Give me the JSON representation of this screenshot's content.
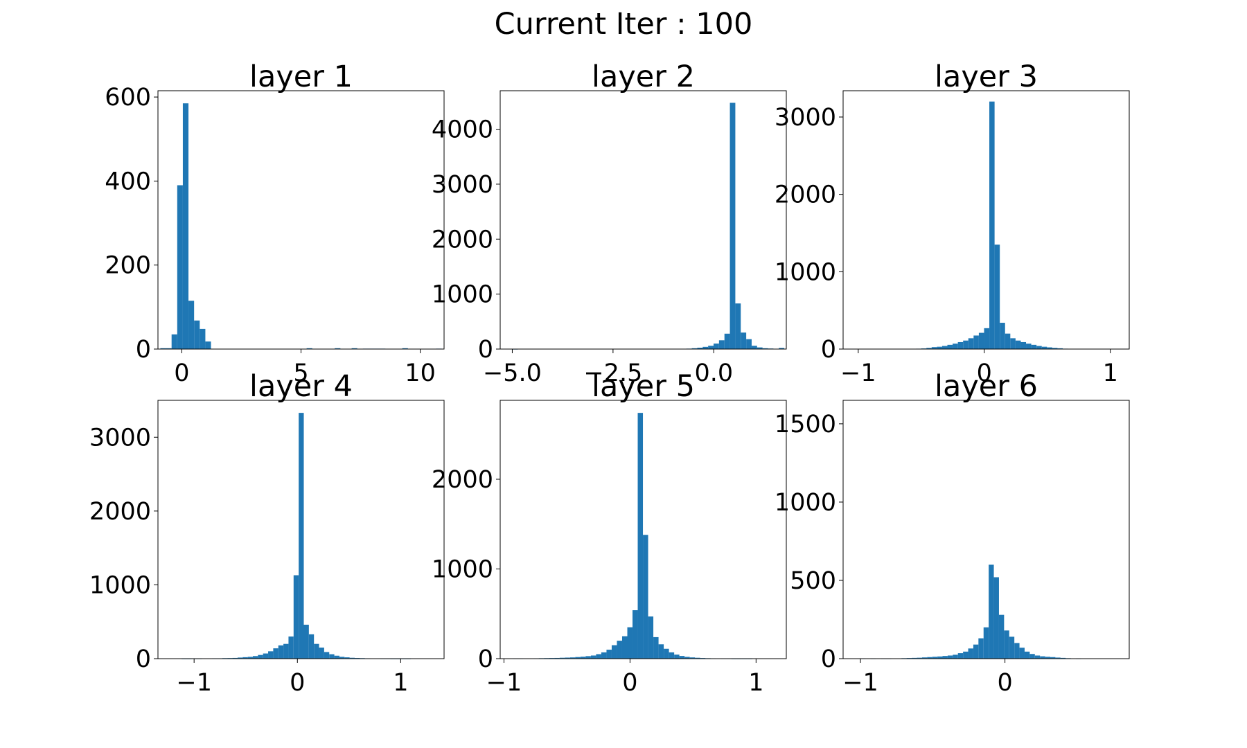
{
  "figure": {
    "suptitle": "Current Iter : 100",
    "bar_color": "#1f77b4"
  },
  "chart_data": [
    {
      "type": "bar",
      "title": "layer 1",
      "xlim": [
        -1.0,
        11.0
      ],
      "ylim": [
        0,
        615
      ],
      "xticks": [
        0,
        5,
        10
      ],
      "xtick_labels": [
        "0",
        "5",
        "10"
      ],
      "yticks": [
        0,
        200,
        400,
        600
      ],
      "ytick_labels": [
        "0",
        "200",
        "400",
        "600"
      ],
      "bin_start": -0.9,
      "bin_width": 0.236,
      "values": [
        2,
        2,
        35,
        390,
        585,
        115,
        68,
        48,
        18,
        0,
        0,
        0,
        0,
        0,
        0,
        0,
        0,
        0,
        0,
        0,
        0,
        0,
        0,
        0,
        0,
        0,
        2,
        0,
        0,
        0,
        0,
        2,
        0,
        0,
        2,
        0,
        1,
        1,
        1,
        1,
        0,
        0,
        0,
        2,
        0,
        0,
        0,
        0,
        0,
        1
      ]
    },
    {
      "type": "bar",
      "title": "layer 2",
      "xlim": [
        -5.3,
        1.8
      ],
      "ylim": [
        0,
        4700
      ],
      "xticks": [
        -5.0,
        -2.5,
        0.0
      ],
      "xtick_labels": [
        "−5.0",
        "−2.5",
        "0.0"
      ],
      "yticks": [
        0,
        1000,
        2000,
        3000,
        4000
      ],
      "ytick_labels": [
        "0",
        "1000",
        "2000",
        "3000",
        "4000"
      ],
      "bin_start": -5.0,
      "bin_width": 0.135,
      "values": [
        2,
        0,
        0,
        0,
        0,
        0,
        0,
        0,
        0,
        0,
        0,
        0,
        0,
        0,
        0,
        0,
        0,
        0,
        0,
        0,
        0,
        0,
        0,
        0,
        0,
        0,
        0,
        0,
        0,
        0,
        0,
        5,
        8,
        15,
        25,
        40,
        60,
        100,
        160,
        280,
        4480,
        830,
        300,
        180,
        60,
        30,
        15,
        10,
        5,
        20
      ]
    },
    {
      "type": "bar",
      "title": "layer 3",
      "xlim": [
        -1.12,
        1.15
      ],
      "ylim": [
        0,
        3340
      ],
      "xticks": [
        -1,
        0,
        1
      ],
      "xtick_labels": [
        "−1",
        "0",
        "1"
      ],
      "yticks": [
        0,
        1000,
        2000,
        3000
      ],
      "ytick_labels": [
        "0",
        "1000",
        "2000",
        "3000"
      ],
      "bin_start": -1.0,
      "bin_width": 0.0416,
      "values": [
        0,
        0,
        0,
        0,
        0,
        0,
        0,
        0,
        0,
        0,
        3,
        5,
        8,
        15,
        25,
        30,
        40,
        55,
        70,
        90,
        110,
        140,
        175,
        210,
        270,
        3200,
        1350,
        340,
        200,
        140,
        110,
        90,
        70,
        55,
        40,
        30,
        22,
        15,
        10,
        5,
        0,
        0,
        0,
        0,
        0,
        0,
        0,
        0,
        0,
        0
      ]
    },
    {
      "type": "bar",
      "title": "layer 4",
      "xlim": [
        -1.35,
        1.42
      ],
      "ylim": [
        0,
        3500
      ],
      "xticks": [
        -1,
        0,
        1
      ],
      "xtick_labels": [
        "−1",
        "0",
        "1"
      ],
      "yticks": [
        0,
        1000,
        2000,
        3000
      ],
      "ytick_labels": [
        "0",
        "1000",
        "2000",
        "3000"
      ],
      "bin_start": -1.22,
      "bin_width": 0.0493,
      "values": [
        0,
        0,
        1,
        1,
        2,
        2,
        3,
        3,
        5,
        5,
        7,
        8,
        10,
        15,
        20,
        25,
        35,
        50,
        70,
        100,
        140,
        180,
        200,
        300,
        1130,
        3330,
        460,
        330,
        200,
        150,
        90,
        60,
        40,
        25,
        18,
        12,
        9,
        7,
        5,
        4,
        3,
        2,
        2,
        1,
        1,
        1,
        1,
        0,
        0,
        0
      ]
    },
    {
      "type": "bar",
      "title": "layer 5",
      "xlim": [
        -1.03,
        1.24
      ],
      "ylim": [
        0,
        2880
      ],
      "xticks": [
        -1,
        0,
        1
      ],
      "xtick_labels": [
        "−1",
        "0",
        "1"
      ],
      "yticks": [
        0,
        1000,
        2000
      ],
      "ytick_labels": [
        "0",
        "1000",
        "2000"
      ],
      "bin_start": -0.93,
      "bin_width": 0.0413,
      "values": [
        2,
        2,
        3,
        3,
        4,
        5,
        6,
        7,
        8,
        10,
        12,
        14,
        18,
        22,
        28,
        35,
        50,
        70,
        100,
        150,
        200,
        250,
        350,
        540,
        2740,
        1380,
        470,
        240,
        160,
        110,
        70,
        45,
        30,
        20,
        14,
        10,
        7,
        5,
        4,
        3,
        2,
        2,
        1,
        1,
        1,
        1,
        0,
        0,
        0,
        0
      ]
    },
    {
      "type": "bar",
      "title": "layer 6",
      "xlim": [
        -1.12,
        0.86
      ],
      "ylim": [
        0,
        1650
      ],
      "xticks": [
        -1,
        0
      ],
      "xtick_labels": [
        "−1",
        "0"
      ],
      "yticks": [
        0,
        500,
        1000,
        1500
      ],
      "ytick_labels": [
        "0",
        "500",
        "1000",
        "1500"
      ],
      "bin_start": -1.0,
      "bin_width": 0.0355,
      "values": [
        1,
        0,
        1,
        0,
        1,
        1,
        2,
        2,
        3,
        4,
        5,
        6,
        8,
        10,
        12,
        14,
        17,
        20,
        25,
        35,
        45,
        65,
        90,
        130,
        200,
        600,
        520,
        280,
        180,
        140,
        100,
        70,
        45,
        30,
        20,
        15,
        12,
        10,
        7,
        5,
        3,
        2,
        1,
        0,
        0,
        0,
        0,
        0,
        0,
        0
      ]
    }
  ]
}
